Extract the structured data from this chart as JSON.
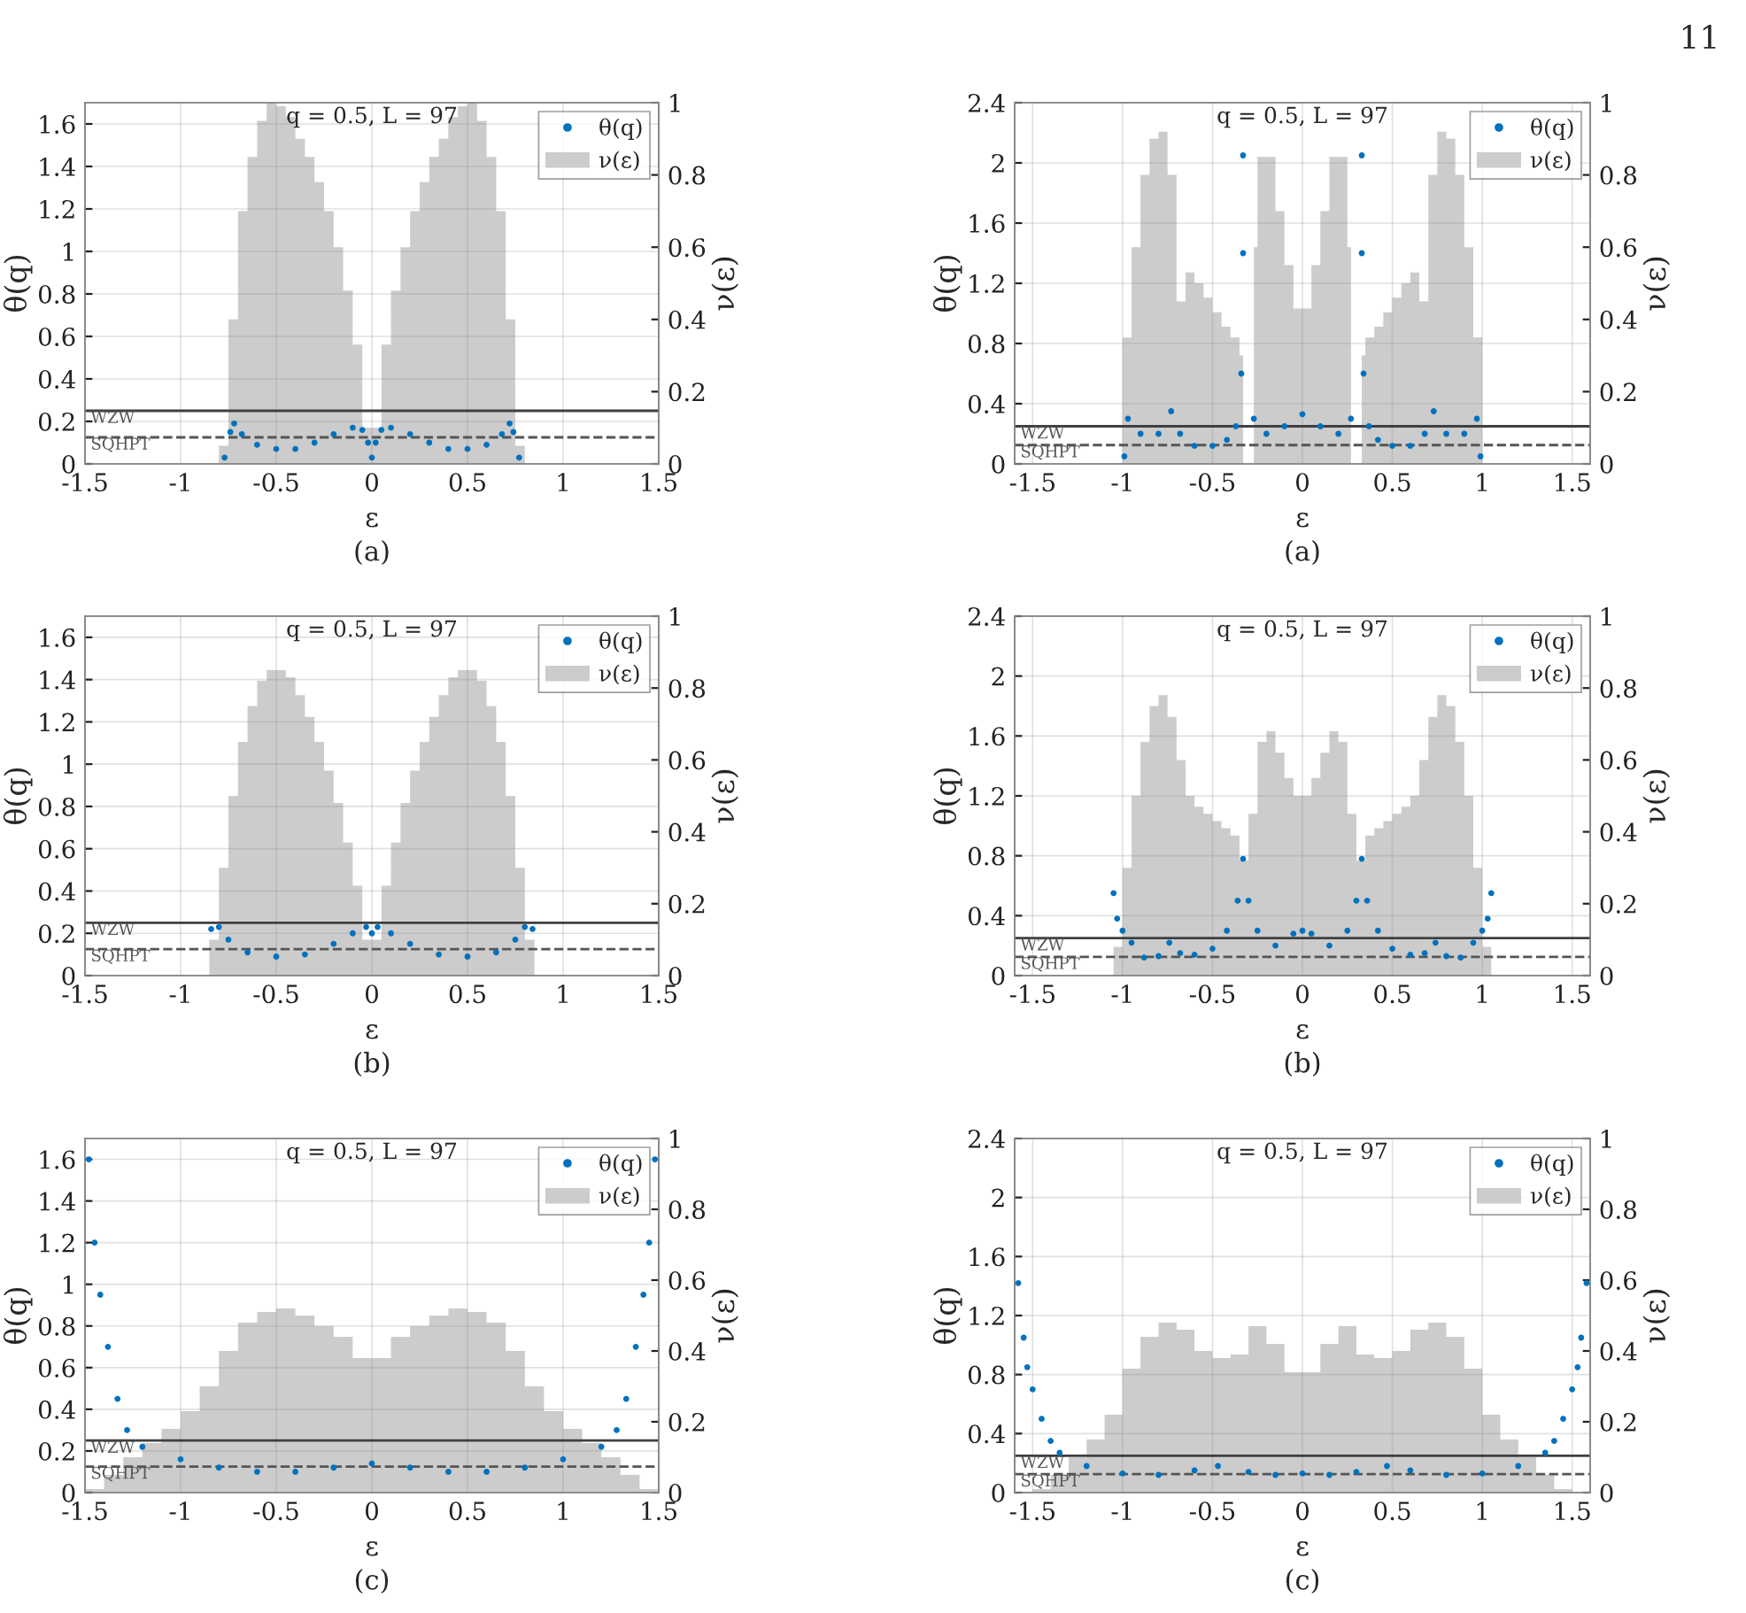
{
  "chart_data": [
    {
      "type": "scatter",
      "title": "q = 0.5, L = 97",
      "xlabel": "ε",
      "ylabel": "θ(q)",
      "y2label": "ν(ε)",
      "annotations": [
        "(a)"
      ],
      "xlim": [
        -1.5,
        1.5
      ],
      "xticks": [
        -1.5,
        -1,
        -0.5,
        0,
        0.5,
        1,
        1.5
      ],
      "ylim": [
        0,
        1.7
      ],
      "yticks": [
        0,
        0.2,
        0.4,
        0.6,
        0.8,
        1,
        1.2,
        1.4,
        1.6
      ],
      "y2lim": [
        0,
        1
      ],
      "y2ticks": [
        0,
        0.2,
        0.4,
        0.6,
        0.8,
        1
      ],
      "grid": true,
      "legend": "top right",
      "marker": "circle",
      "ref_lines": [
        {
          "axis": "y",
          "value": 0.25,
          "label": "WZW",
          "color": "#404040",
          "line_style": "solid"
        },
        {
          "axis": "y",
          "value": 0.125,
          "label": "SQHPT",
          "color": "#555555",
          "line_style": "dashed"
        }
      ],
      "series": [
        {
          "name": "θ(q)",
          "type": "scatter",
          "color": "#0072bd",
          "x": [
            -0.77,
            -0.74,
            -0.72,
            -0.68,
            -0.6,
            -0.5,
            -0.4,
            -0.3,
            -0.2,
            -0.1,
            -0.05,
            -0.02,
            0,
            0.02,
            0.05,
            0.1,
            0.2,
            0.3,
            0.4,
            0.5,
            0.6,
            0.68,
            0.72,
            0.74,
            0.77
          ],
          "values": [
            0.03,
            0.15,
            0.19,
            0.14,
            0.09,
            0.07,
            0.07,
            0.1,
            0.14,
            0.17,
            0.16,
            0.1,
            0.03,
            0.1,
            0.16,
            0.17,
            0.14,
            0.1,
            0.07,
            0.07,
            0.09,
            0.14,
            0.19,
            0.15,
            0.03
          ]
        },
        {
          "name": "ν(ε)",
          "type": "histogram",
          "axis": "y2",
          "color": "#cccccc",
          "bins": [
            -0.8,
            -0.75,
            -0.7,
            -0.65,
            -0.6,
            -0.55,
            -0.5,
            -0.45,
            -0.4,
            -0.35,
            -0.3,
            -0.25,
            -0.2,
            -0.15,
            -0.1,
            -0.05,
            0,
            0.05,
            0.1,
            0.15,
            0.2,
            0.25,
            0.3,
            0.35,
            0.4,
            0.45,
            0.5,
            0.55,
            0.6,
            0.65,
            0.7,
            0.75,
            0.8
          ],
          "values": [
            0.05,
            0.4,
            0.7,
            0.85,
            0.95,
            1.0,
            0.99,
            0.96,
            0.9,
            0.85,
            0.78,
            0.7,
            0.6,
            0.48,
            0.33,
            0.1,
            0.1,
            0.33,
            0.48,
            0.6,
            0.7,
            0.78,
            0.85,
            0.9,
            0.96,
            0.99,
            1.0,
            0.95,
            0.85,
            0.7,
            0.4,
            0.05
          ]
        }
      ]
    },
    {
      "type": "scatter",
      "title": "q = 0.5, L = 97",
      "xlabel": "ε",
      "ylabel": "θ(q)",
      "y2label": "ν(ε)",
      "annotations": [
        "(a)",
        "11"
      ],
      "xlim": [
        -1.6,
        1.6
      ],
      "xticks": [
        -1.5,
        -1,
        -0.5,
        0,
        0.5,
        1,
        1.5
      ],
      "ylim": [
        0,
        2.4
      ],
      "yticks": [
        0,
        0.4,
        0.8,
        1.2,
        1.6,
        2,
        2.4
      ],
      "y2lim": [
        0,
        1
      ],
      "y2ticks": [
        0,
        0.2,
        0.4,
        0.6,
        0.8,
        1
      ],
      "grid": true,
      "legend": "top right",
      "marker": "circle",
      "ref_lines": [
        {
          "axis": "y",
          "value": 0.25,
          "label": "WZW",
          "color": "#404040",
          "line_style": "solid"
        },
        {
          "axis": "y",
          "value": 0.125,
          "label": "SQHPT",
          "color": "#555555",
          "line_style": "dashed"
        }
      ],
      "series": [
        {
          "name": "θ(q)",
          "type": "scatter",
          "color": "#0072bd",
          "x": [
            -0.99,
            -0.97,
            -0.9,
            -0.8,
            -0.73,
            -0.68,
            -0.6,
            -0.5,
            -0.42,
            -0.37,
            -0.34,
            -0.33,
            -0.33,
            -0.27,
            -0.2,
            -0.1,
            0,
            0.1,
            0.2,
            0.27,
            0.33,
            0.33,
            0.34,
            0.37,
            0.42,
            0.5,
            0.6,
            0.68,
            0.73,
            0.8,
            0.9,
            0.97,
            0.99
          ],
          "values": [
            0.05,
            0.3,
            0.2,
            0.2,
            0.35,
            0.2,
            0.12,
            0.12,
            0.16,
            0.25,
            0.6,
            1.4,
            2.05,
            0.3,
            0.2,
            0.25,
            0.33,
            0.25,
            0.2,
            0.3,
            2.05,
            1.4,
            0.6,
            0.25,
            0.16,
            0.12,
            0.12,
            0.2,
            0.35,
            0.2,
            0.2,
            0.3,
            0.05
          ]
        },
        {
          "name": "ν(ε)",
          "type": "histogram",
          "axis": "y2",
          "color": "#cccccc",
          "bins": [
            -1.0,
            -0.95,
            -0.9,
            -0.85,
            -0.8,
            -0.75,
            -0.7,
            -0.65,
            -0.6,
            -0.55,
            -0.5,
            -0.45,
            -0.4,
            -0.35,
            -0.33,
            -0.27,
            -0.25,
            -0.2,
            -0.15,
            -0.1,
            -0.05,
            0,
            0.05,
            0.1,
            0.15,
            0.2,
            0.25,
            0.27,
            0.33,
            0.35,
            0.4,
            0.45,
            0.5,
            0.55,
            0.6,
            0.65,
            0.7,
            0.75,
            0.8,
            0.85,
            0.9,
            0.95,
            1.0
          ],
          "values": [
            0.35,
            0.6,
            0.8,
            0.9,
            0.92,
            0.8,
            0.45,
            0.53,
            0.5,
            0.46,
            0.42,
            0.38,
            0.35,
            0.3,
            0,
            0.6,
            0.85,
            0.85,
            0.7,
            0.55,
            0.43,
            0.43,
            0.55,
            0.7,
            0.85,
            0.85,
            0.6,
            0,
            0.3,
            0.35,
            0.38,
            0.42,
            0.46,
            0.5,
            0.53,
            0.45,
            0.8,
            0.92,
            0.9,
            0.8,
            0.6,
            0.35
          ]
        }
      ]
    },
    {
      "type": "scatter",
      "title": "q = 0.5, L = 97",
      "xlabel": "ε",
      "ylabel": "θ(q)",
      "y2label": "ν(ε)",
      "annotations": [
        "(b)"
      ],
      "xlim": [
        -1.5,
        1.5
      ],
      "xticks": [
        -1.5,
        -1,
        -0.5,
        0,
        0.5,
        1,
        1.5
      ],
      "ylim": [
        0,
        1.7
      ],
      "yticks": [
        0,
        0.2,
        0.4,
        0.6,
        0.8,
        1,
        1.2,
        1.4,
        1.6
      ],
      "y2lim": [
        0,
        1
      ],
      "y2ticks": [
        0,
        0.2,
        0.4,
        0.6,
        0.8,
        1
      ],
      "grid": true,
      "legend": "top right",
      "marker": "circle",
      "ref_lines": [
        {
          "axis": "y",
          "value": 0.25,
          "label": "WZW",
          "color": "#404040",
          "line_style": "solid"
        },
        {
          "axis": "y",
          "value": 0.125,
          "label": "SQHPT",
          "color": "#555555",
          "line_style": "dashed"
        }
      ],
      "series": [
        {
          "name": "θ(q)",
          "type": "scatter",
          "color": "#0072bd",
          "x": [
            -0.84,
            -0.8,
            -0.75,
            -0.65,
            -0.5,
            -0.35,
            -0.2,
            -0.1,
            -0.03,
            0,
            0.03,
            0.1,
            0.2,
            0.35,
            0.5,
            0.65,
            0.75,
            0.8,
            0.84
          ],
          "values": [
            0.22,
            0.23,
            0.17,
            0.11,
            0.09,
            0.1,
            0.15,
            0.2,
            0.23,
            0.2,
            0.23,
            0.2,
            0.15,
            0.1,
            0.09,
            0.11,
            0.17,
            0.23,
            0.22
          ]
        },
        {
          "name": "ν(ε)",
          "type": "histogram",
          "axis": "y2",
          "color": "#cccccc",
          "bins": [
            -0.85,
            -0.8,
            -0.75,
            -0.7,
            -0.65,
            -0.6,
            -0.55,
            -0.5,
            -0.45,
            -0.4,
            -0.35,
            -0.3,
            -0.25,
            -0.2,
            -0.15,
            -0.1,
            -0.05,
            0,
            0.05,
            0.1,
            0.15,
            0.2,
            0.25,
            0.3,
            0.35,
            0.4,
            0.45,
            0.5,
            0.55,
            0.6,
            0.65,
            0.7,
            0.75,
            0.8,
            0.85
          ],
          "values": [
            0.1,
            0.3,
            0.5,
            0.65,
            0.75,
            0.82,
            0.85,
            0.85,
            0.83,
            0.78,
            0.72,
            0.65,
            0.57,
            0.48,
            0.37,
            0.25,
            0.1,
            0.1,
            0.25,
            0.37,
            0.48,
            0.57,
            0.65,
            0.72,
            0.78,
            0.83,
            0.85,
            0.85,
            0.82,
            0.75,
            0.65,
            0.5,
            0.3,
            0.1
          ]
        }
      ]
    },
    {
      "type": "scatter",
      "title": "q = 0.5, L = 97",
      "xlabel": "ε",
      "ylabel": "θ(q)",
      "y2label": "ν(ε)",
      "annotations": [
        "(b)"
      ],
      "xlim": [
        -1.6,
        1.6
      ],
      "xticks": [
        -1.5,
        -1,
        -0.5,
        0,
        0.5,
        1,
        1.5
      ],
      "ylim": [
        0,
        2.4
      ],
      "yticks": [
        0,
        0.4,
        0.8,
        1.2,
        1.6,
        2,
        2.4
      ],
      "y2lim": [
        0,
        1
      ],
      "y2ticks": [
        0,
        0.2,
        0.4,
        0.6,
        0.8,
        1
      ],
      "grid": true,
      "legend": "top right",
      "marker": "circle",
      "ref_lines": [
        {
          "axis": "y",
          "value": 0.25,
          "label": "WZW",
          "color": "#404040",
          "line_style": "solid"
        },
        {
          "axis": "y",
          "value": 0.125,
          "label": "SQHPT",
          "color": "#555555",
          "line_style": "dashed"
        }
      ],
      "series": [
        {
          "name": "θ(q)",
          "type": "scatter",
          "color": "#0072bd",
          "x": [
            -1.05,
            -1.03,
            -1.0,
            -0.95,
            -0.88,
            -0.8,
            -0.74,
            -0.68,
            -0.6,
            -0.5,
            -0.42,
            -0.36,
            -0.33,
            -0.3,
            -0.25,
            -0.15,
            -0.05,
            0,
            0.05,
            0.15,
            0.25,
            0.3,
            0.33,
            0.36,
            0.42,
            0.5,
            0.6,
            0.68,
            0.74,
            0.8,
            0.88,
            0.95,
            1.0,
            1.03,
            1.05
          ],
          "values": [
            0.55,
            0.38,
            0.3,
            0.22,
            0.12,
            0.13,
            0.22,
            0.15,
            0.14,
            0.18,
            0.3,
            0.5,
            0.78,
            0.5,
            0.3,
            0.2,
            0.28,
            0.3,
            0.28,
            0.2,
            0.3,
            0.5,
            0.78,
            0.5,
            0.3,
            0.18,
            0.14,
            0.15,
            0.22,
            0.13,
            0.12,
            0.22,
            0.3,
            0.38,
            0.55
          ]
        },
        {
          "name": "ν(ε)",
          "type": "histogram",
          "axis": "y2",
          "color": "#cccccc",
          "bins": [
            -1.05,
            -1.0,
            -0.95,
            -0.9,
            -0.85,
            -0.8,
            -0.75,
            -0.7,
            -0.65,
            -0.6,
            -0.55,
            -0.5,
            -0.45,
            -0.4,
            -0.35,
            -0.3,
            -0.25,
            -0.2,
            -0.15,
            -0.1,
            -0.05,
            0,
            0.05,
            0.1,
            0.15,
            0.2,
            0.25,
            0.3,
            0.35,
            0.4,
            0.45,
            0.5,
            0.55,
            0.6,
            0.65,
            0.7,
            0.75,
            0.8,
            0.85,
            0.9,
            0.95,
            1.0,
            1.05
          ],
          "values": [
            0.08,
            0.3,
            0.5,
            0.65,
            0.75,
            0.78,
            0.72,
            0.6,
            0.5,
            0.47,
            0.45,
            0.43,
            0.41,
            0.39,
            0.32,
            0.45,
            0.65,
            0.68,
            0.62,
            0.55,
            0.5,
            0.5,
            0.55,
            0.62,
            0.68,
            0.65,
            0.45,
            0.32,
            0.39,
            0.41,
            0.43,
            0.45,
            0.47,
            0.5,
            0.6,
            0.72,
            0.78,
            0.75,
            0.65,
            0.5,
            0.3,
            0.08
          ]
        }
      ]
    },
    {
      "type": "scatter",
      "title": "q = 0.5, L = 97",
      "xlabel": "ε",
      "ylabel": "θ(q)",
      "y2label": "ν(ε)",
      "annotations": [
        "(c)"
      ],
      "xlim": [
        -1.5,
        1.5
      ],
      "xticks": [
        -1.5,
        -1,
        -0.5,
        0,
        0.5,
        1,
        1.5
      ],
      "ylim": [
        0,
        1.7
      ],
      "yticks": [
        0,
        0.2,
        0.4,
        0.6,
        0.8,
        1,
        1.2,
        1.4,
        1.6
      ],
      "y2lim": [
        0,
        1
      ],
      "y2ticks": [
        0,
        0.2,
        0.4,
        0.6,
        0.8,
        1
      ],
      "grid": true,
      "legend": "top right",
      "marker": "circle",
      "ref_lines": [
        {
          "axis": "y",
          "value": 0.25,
          "label": "WZW",
          "color": "#404040",
          "line_style": "solid"
        },
        {
          "axis": "y",
          "value": 0.125,
          "label": "SQHPT",
          "color": "#555555",
          "line_style": "dashed"
        }
      ],
      "series": [
        {
          "name": "θ(q)",
          "type": "scatter",
          "color": "#0072bd",
          "x": [
            -1.48,
            -1.45,
            -1.42,
            -1.38,
            -1.33,
            -1.28,
            -1.2,
            -1.0,
            -0.8,
            -0.6,
            -0.4,
            -0.2,
            0,
            0.2,
            0.4,
            0.6,
            0.8,
            1.0,
            1.2,
            1.28,
            1.33,
            1.38,
            1.42,
            1.45,
            1.48
          ],
          "values": [
            1.6,
            1.2,
            0.95,
            0.7,
            0.45,
            0.3,
            0.22,
            0.16,
            0.12,
            0.1,
            0.1,
            0.12,
            0.14,
            0.12,
            0.1,
            0.1,
            0.12,
            0.16,
            0.22,
            0.3,
            0.45,
            0.7,
            0.95,
            1.2,
            1.6
          ]
        },
        {
          "name": "ν(ε)",
          "type": "histogram",
          "axis": "y2",
          "color": "#cccccc",
          "bins": [
            -1.5,
            -1.4,
            -1.3,
            -1.2,
            -1.1,
            -1.0,
            -0.9,
            -0.8,
            -0.7,
            -0.6,
            -0.5,
            -0.4,
            -0.3,
            -0.2,
            -0.1,
            0,
            0.1,
            0.2,
            0.3,
            0.4,
            0.5,
            0.6,
            0.7,
            0.8,
            0.9,
            1.0,
            1.1,
            1.2,
            1.3,
            1.4,
            1.5
          ],
          "values": [
            0.01,
            0.05,
            0.1,
            0.14,
            0.18,
            0.23,
            0.3,
            0.4,
            0.48,
            0.51,
            0.52,
            0.5,
            0.47,
            0.44,
            0.38,
            0.38,
            0.44,
            0.47,
            0.5,
            0.52,
            0.51,
            0.48,
            0.4,
            0.3,
            0.23,
            0.18,
            0.14,
            0.1,
            0.05,
            0.01
          ]
        }
      ]
    },
    {
      "type": "scatter",
      "title": "q = 0.5, L = 97",
      "xlabel": "ε",
      "ylabel": "θ(q)",
      "y2label": "ν(ε)",
      "annotations": [
        "(c)"
      ],
      "xlim": [
        -1.6,
        1.6
      ],
      "xticks": [
        -1.5,
        -1,
        -0.5,
        0,
        0.5,
        1,
        1.5
      ],
      "ylim": [
        0,
        2.4
      ],
      "yticks": [
        0,
        0.4,
        0.8,
        1.2,
        1.6,
        2,
        2.4
      ],
      "y2lim": [
        0,
        1
      ],
      "y2ticks": [
        0,
        0.2,
        0.4,
        0.6,
        0.8,
        1
      ],
      "grid": true,
      "legend": "top right",
      "marker": "circle",
      "ref_lines": [
        {
          "axis": "y",
          "value": 0.25,
          "label": "WZW",
          "color": "#404040",
          "line_style": "solid"
        },
        {
          "axis": "y",
          "value": 0.125,
          "label": "SQHPT",
          "color": "#555555",
          "line_style": "dashed"
        }
      ],
      "series": [
        {
          "name": "θ(q)",
          "type": "scatter",
          "color": "#0072bd",
          "x": [
            -1.58,
            -1.55,
            -1.53,
            -1.5,
            -1.45,
            -1.4,
            -1.35,
            -1.2,
            -1.0,
            -0.8,
            -0.6,
            -0.47,
            -0.3,
            -0.15,
            0,
            0.15,
            0.3,
            0.47,
            0.6,
            0.8,
            1.0,
            1.2,
            1.35,
            1.4,
            1.45,
            1.5,
            1.53,
            1.55,
            1.58
          ],
          "values": [
            1.42,
            1.05,
            0.85,
            0.7,
            0.5,
            0.35,
            0.27,
            0.18,
            0.13,
            0.12,
            0.15,
            0.18,
            0.14,
            0.12,
            0.13,
            0.12,
            0.14,
            0.18,
            0.15,
            0.12,
            0.13,
            0.18,
            0.27,
            0.35,
            0.5,
            0.7,
            0.85,
            1.05,
            1.42
          ]
        },
        {
          "name": "ν(ε)",
          "type": "histogram",
          "axis": "y2",
          "color": "#cccccc",
          "bins": [
            -1.5,
            -1.4,
            -1.3,
            -1.2,
            -1.1,
            -1.0,
            -0.9,
            -0.8,
            -0.7,
            -0.6,
            -0.5,
            -0.4,
            -0.3,
            -0.2,
            -0.1,
            0,
            0.1,
            0.2,
            0.3,
            0.4,
            0.5,
            0.6,
            0.7,
            0.8,
            0.9,
            1.0,
            1.1,
            1.2,
            1.3,
            1.4,
            1.5
          ],
          "values": [
            0.01,
            0.05,
            0.1,
            0.15,
            0.22,
            0.35,
            0.44,
            0.48,
            0.46,
            0.4,
            0.38,
            0.39,
            0.47,
            0.42,
            0.34,
            0.34,
            0.42,
            0.47,
            0.39,
            0.38,
            0.4,
            0.46,
            0.48,
            0.44,
            0.35,
            0.22,
            0.15,
            0.1,
            0.05,
            0.01
          ]
        }
      ]
    }
  ]
}
